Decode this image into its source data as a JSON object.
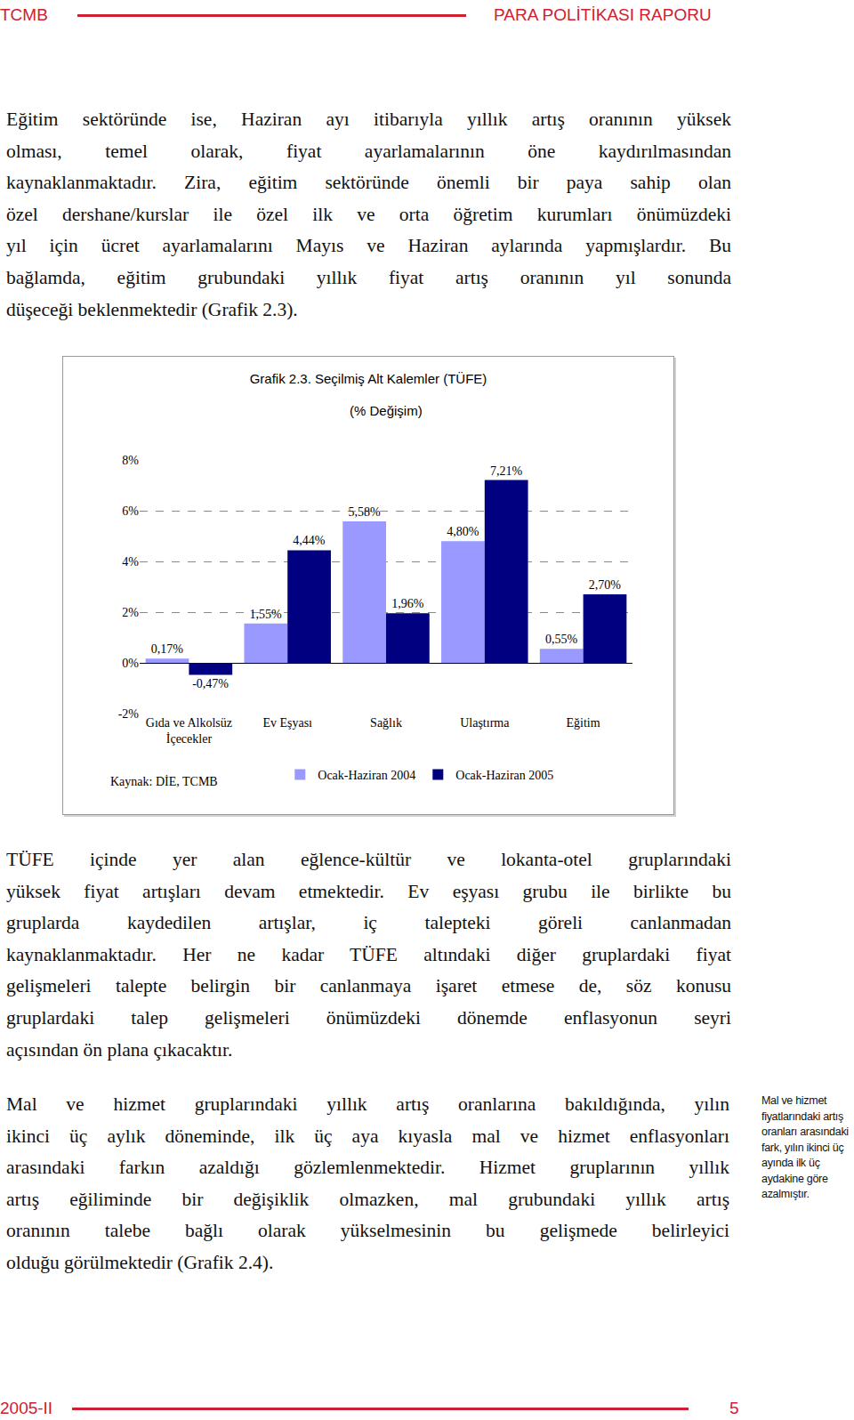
{
  "header": {
    "left": "TCMB",
    "right": "PARA POLİTİKASI RAPORU"
  },
  "paragraphs": [
    [
      "Eğitim sektöründe ise, Haziran ayı itibarıyla yıllık artış oranının yüksek",
      "olması, temel olarak, fiyat ayarlamalarının öne kaydırılmasından",
      "kaynaklanmaktadır. Zira, eğitim sektöründe önemli bir paya sahip olan",
      "özel dershane/kurslar ile özel ilk ve orta öğretim kurumları önümüzdeki",
      "yıl için ücret ayarlamalarını Mayıs ve Haziran aylarında yapmışlardır. Bu",
      "bağlamda, eğitim grubundaki yıllık fiyat artış oranının yıl sonunda",
      "düşeceği beklenmektedir (Grafik 2.3)."
    ],
    [
      "TÜFE içinde yer alan eğlence-kültür ve lokanta-otel gruplarındaki",
      "yüksek fiyat artışları devam etmektedir. Ev eşyası grubu ile birlikte bu",
      "gruplarda kaydedilen artışlar, iç talepteki göreli canlanmadan",
      "kaynaklanmaktadır. Her ne kadar TÜFE altındaki diğer gruplardaki fiyat",
      "gelişmeleri talepte belirgin bir canlanmaya işaret etmese de, söz konusu",
      "gruplardaki talep gelişmeleri önümüzdeki dönemde enflasyonun seyri",
      "açısından ön plana çıkacaktır."
    ],
    [
      "Mal ve hizmet gruplarındaki yıllık artış oranlarına bakıldığında, yılın",
      "ikinci üç aylık döneminde, ilk üç aya kıyasla mal ve hizmet enflasyonları",
      "arasındaki farkın azaldığı gözlemlenmektedir. Hizmet gruplarının yıllık",
      "artış eğiliminde bir değişiklik olmazken, mal grubundaki yıllık artış",
      "oranının talebe bağlı olarak yükselmesinin bu gelişmede belirleyici",
      "olduğu görülmektedir (Grafik 2.4)."
    ]
  ],
  "sidebar": [
    "Mal ve hizmet",
    "fiyatlarındaki artış",
    "oranları arasındaki",
    "fark, yılın ikinci üç",
    "ayında ilk üç",
    "aydakine göre",
    "azalmıştır."
  ],
  "footer": {
    "left": "2005-II",
    "right": "5"
  },
  "chart_data": {
    "type": "bar",
    "title": "Grafik 2.3. Seçilmiş Alt Kalemler (TÜFE)",
    "subtitle": "(% Değişim)",
    "source": "Kaynak: DİE, TCMB",
    "categories": [
      "Gıda ve Alkolsüz\nİçecekler",
      "Ev Eşyası",
      "Sağlık",
      "Ulaştırma",
      "Eğitim"
    ],
    "series": [
      {
        "name": "Ocak-Haziran 2004",
        "color": "#9999ff",
        "values": [
          0.17,
          1.55,
          5.58,
          4.8,
          0.55
        ],
        "value_labels": [
          "0,17%",
          "1,55%",
          "5,58%",
          "4,80%",
          "0,55%"
        ]
      },
      {
        "name": "Ocak-Haziran 2005",
        "color": "#000080",
        "values": [
          -0.47,
          4.44,
          1.96,
          7.21,
          2.7
        ],
        "value_labels": [
          "-0,47%",
          "4,44%",
          "1,96%",
          "7,21%",
          "2,70%"
        ]
      }
    ],
    "ylim": [
      -2,
      8
    ],
    "yticks": [
      {
        "value": -2,
        "label": "-2%"
      },
      {
        "value": 0,
        "label": "0%"
      },
      {
        "value": 2,
        "label": "2%"
      },
      {
        "value": 4,
        "label": "4%"
      },
      {
        "value": 6,
        "label": "6%"
      },
      {
        "value": 8,
        "label": "8%"
      }
    ],
    "grid": true,
    "data_labels": true,
    "legend": "bottom"
  }
}
